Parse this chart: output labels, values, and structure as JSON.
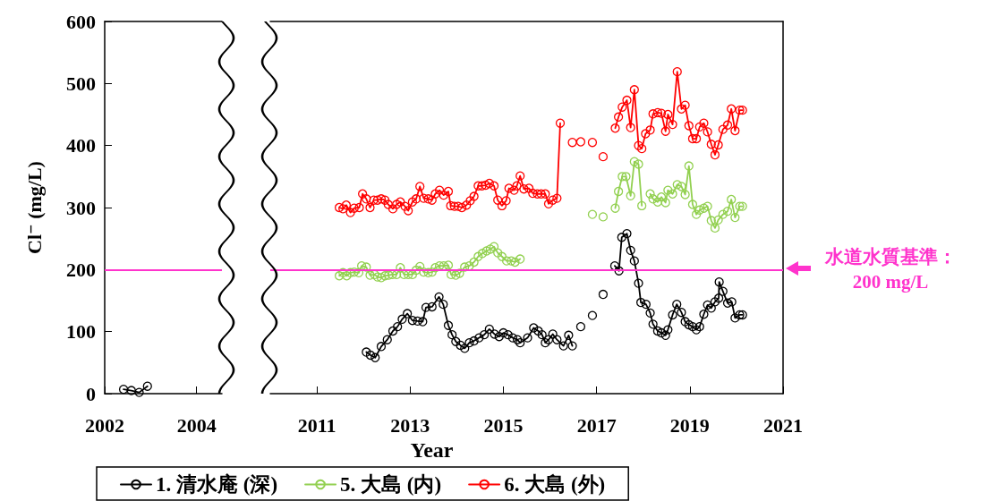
{
  "chart_data": [
    {
      "type": "line",
      "ylabel": "Cl⁻ (mg/L)",
      "xlim": [
        2002,
        2004.55
      ],
      "xticks": [
        2002,
        2004
      ],
      "ylim": [
        0,
        600
      ],
      "yticks": [
        0,
        100,
        200,
        300,
        400,
        500,
        600
      ],
      "grid": false,
      "legend": false,
      "marker": "circle",
      "line_style": "solid",
      "series": [
        {
          "color": "#000000",
          "x": [
            2002.41,
            2002.58,
            2002.75,
            2002.93
          ],
          "values": [
            7,
            5,
            2,
            12
          ]
        }
      ],
      "ref_lines": [
        {
          "axis": "y",
          "value": 200,
          "color": "#ff33cc"
        }
      ]
    },
    {
      "type": "line",
      "xlabel": "Year",
      "xlim": [
        2010,
        2021
      ],
      "xticks": [
        2011,
        2013,
        2015,
        2017,
        2019,
        2021
      ],
      "ylim": [
        0,
        600
      ],
      "yticks": [
        0,
        100,
        200,
        300,
        400,
        500,
        600
      ],
      "tick_labels": "x",
      "grid": false,
      "legend": "bottom",
      "marker": "circle",
      "line_style": "solid",
      "series": [
        {
          "name": "1. 清水庵 (深)",
          "color": "#000000",
          "x": [
            2012.06,
            2012.15,
            2012.25,
            2012.38,
            2012.51,
            2012.63,
            2012.73,
            2012.83,
            2012.94,
            2013.05,
            2013.16,
            2013.27,
            2013.34,
            2013.47,
            2013.62,
            2013.71,
            2013.82,
            2013.9,
            2013.98,
            2014.08,
            2014.17,
            2014.27,
            2014.37,
            2014.48,
            2014.59,
            2014.7,
            2014.81,
            2014.91,
            2015.0,
            2015.1,
            2015.2,
            2015.3,
            2015.36,
            2015.52,
            2015.65,
            2015.75,
            2015.83,
            2015.9,
            2015.97,
            2016.06,
            2016.15,
            2016.29,
            2016.4,
            2016.48,
            2016.57,
            2016.66,
            2016.78,
            2016.91,
            2017.02,
            2017.14,
            2017.26,
            2017.39,
            2017.48,
            2017.54,
            2017.65,
            2017.73,
            2017.81,
            2017.9,
            2017.95,
            2018.06,
            2018.15,
            2018.21,
            2018.31,
            2018.39,
            2018.48,
            2018.53,
            2018.63,
            2018.72,
            2018.82,
            2018.9,
            2018.98,
            2019.06,
            2019.14,
            2019.21,
            2019.3,
            2019.38,
            2019.46,
            2019.54,
            2019.62,
            2019.63,
            2019.71,
            2019.81,
            2019.9,
            2019.97,
            2020.07,
            2020.13
          ],
          "values": [
            67,
            62,
            58,
            76,
            87,
            101,
            108,
            120,
            129,
            118,
            117,
            116,
            139,
            140,
            156,
            144,
            110,
            95,
            84,
            78,
            73,
            82,
            85,
            90,
            95,
            104,
            96,
            92,
            98,
            95,
            90,
            87,
            82,
            90,
            106,
            101,
            95,
            82,
            87,
            96,
            87,
            77,
            94,
            77,
            null,
            108,
            null,
            126,
            null,
            160,
            null,
            206,
            198,
            252,
            258,
            231,
            214,
            178,
            147,
            144,
            130,
            112,
            101,
            98,
            94,
            103,
            127,
            144,
            131,
            116,
            111,
            108,
            103,
            108,
            128,
            143,
            138,
            148,
            154,
            180,
            165,
            146,
            148,
            122,
            127,
            127
          ]
        },
        {
          "name": "5. 大島 (内)",
          "color": "#92d050",
          "x": [
            2011.48,
            2011.56,
            2011.64,
            2011.72,
            2011.8,
            2011.9,
            2011.96,
            2012.06,
            2012.14,
            2012.24,
            2012.3,
            2012.38,
            2012.46,
            2012.54,
            2012.62,
            2012.71,
            2012.79,
            2012.87,
            2012.96,
            2013.05,
            2013.13,
            2013.21,
            2013.29,
            2013.39,
            2013.47,
            2013.54,
            2013.63,
            2013.72,
            2013.82,
            2013.88,
            2013.98,
            2014.06,
            2014.17,
            2014.27,
            2014.37,
            2014.46,
            2014.55,
            2014.64,
            2014.72,
            2014.8,
            2014.88,
            2014.97,
            2015.07,
            2015.17,
            2015.25,
            2015.36,
            2016.1,
            2016.91,
            2017.02,
            2017.14,
            2017.27,
            2017.4,
            2017.47,
            2017.55,
            2017.63,
            2017.73,
            2017.81,
            2017.9,
            2017.97,
            2018.06,
            2018.15,
            2018.21,
            2018.31,
            2018.39,
            2018.48,
            2018.53,
            2018.63,
            2018.73,
            2018.82,
            2018.9,
            2018.98,
            2019.06,
            2019.14,
            2019.21,
            2019.3,
            2019.38,
            2019.46,
            2019.54,
            2019.61,
            2019.71,
            2019.81,
            2019.89,
            2019.97,
            2020.07,
            2020.13
          ],
          "values": [
            190,
            195,
            190,
            195,
            196,
            195,
            206,
            204,
            191,
            192,
            188,
            187,
            190,
            191,
            192,
            192,
            203,
            192,
            192,
            192,
            199,
            205,
            196,
            195,
            196,
            203,
            206,
            206,
            207,
            192,
            191,
            194,
            204,
            206,
            212,
            221,
            226,
            230,
            233,
            237,
            227,
            221,
            214,
            214,
            212,
            217,
            null,
            289,
            null,
            285,
            null,
            299,
            326,
            350,
            350,
            319,
            374,
            370,
            303,
            null,
            322,
            314,
            309,
            317,
            308,
            328,
            322,
            337,
            334,
            321,
            367,
            305,
            289,
            296,
            299,
            302,
            279,
            267,
            280,
            289,
            294,
            313,
            284,
            302,
            302
          ]
        },
        {
          "name": "6. 大島 (外)",
          "color": "#ff0000",
          "x": [
            2011.48,
            2011.56,
            2011.63,
            2011.72,
            2011.8,
            2011.91,
            2011.98,
            2012.06,
            2012.14,
            2012.22,
            2012.3,
            2012.38,
            2012.46,
            2012.53,
            2012.63,
            2012.71,
            2012.79,
            2012.89,
            2012.96,
            2013.05,
            2013.13,
            2013.21,
            2013.29,
            2013.39,
            2013.47,
            2013.54,
            2013.63,
            2013.72,
            2013.82,
            2013.87,
            2013.95,
            2014.03,
            2014.11,
            2014.21,
            2014.29,
            2014.37,
            2014.46,
            2014.54,
            2014.62,
            2014.7,
            2014.8,
            2014.88,
            2014.97,
            2015.06,
            2015.12,
            2015.23,
            2015.29,
            2015.36,
            2015.44,
            2015.55,
            2015.63,
            2015.73,
            2015.81,
            2015.9,
            2015.97,
            2016.06,
            2016.15,
            2016.22,
            2016.35,
            2016.48,
            2016.57,
            2016.66,
            2016.78,
            2016.91,
            2017.02,
            2017.14,
            2017.27,
            2017.4,
            2017.47,
            2017.55,
            2017.65,
            2017.73,
            2017.81,
            2017.9,
            2017.97,
            2018.05,
            2018.15,
            2018.21,
            2018.31,
            2018.39,
            2018.48,
            2018.53,
            2018.63,
            2018.73,
            2018.82,
            2018.9,
            2018.98,
            2019.06,
            2019.14,
            2019.21,
            2019.3,
            2019.38,
            2019.46,
            2019.54,
            2019.61,
            2019.71,
            2019.81,
            2019.89,
            2019.97,
            2020.07,
            2020.13
          ],
          "values": [
            300,
            298,
            304,
            292,
            299,
            300,
            322,
            314,
            300,
            312,
            312,
            314,
            312,
            305,
            298,
            305,
            309,
            302,
            295,
            309,
            314,
            334,
            315,
            314,
            312,
            322,
            328,
            320,
            326,
            303,
            302,
            302,
            300,
            304,
            311,
            318,
            335,
            335,
            336,
            339,
            335,
            312,
            303,
            311,
            331,
            328,
            335,
            351,
            330,
            331,
            323,
            322,
            322,
            322,
            306,
            312,
            315,
            436,
            null,
            405,
            null,
            406,
            null,
            405,
            null,
            382,
            null,
            428,
            446,
            462,
            473,
            429,
            490,
            400,
            395,
            419,
            425,
            451,
            453,
            452,
            423,
            450,
            434,
            519,
            459,
            465,
            432,
            411,
            411,
            430,
            436,
            422,
            402,
            385,
            401,
            426,
            433,
            459,
            424,
            457,
            457
          ]
        }
      ],
      "ref_lines": [
        {
          "axis": "y",
          "value": 200,
          "label": "水道水質基準：\n200 mg/L",
          "color": "#ff33cc"
        }
      ]
    }
  ]
}
